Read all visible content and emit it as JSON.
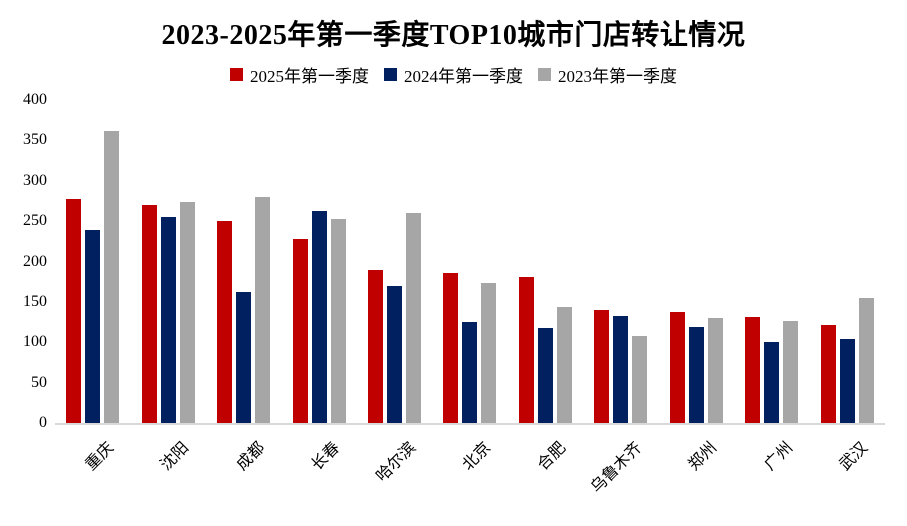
{
  "chart_data": {
    "type": "bar",
    "title": "2023-2025年第一季度TOP10城市门店转让情况",
    "categories": [
      "重庆",
      "沈阳",
      "成都",
      "长春",
      "哈尔滨",
      "北京",
      "合肥",
      "乌鲁木齐",
      "郑州",
      "广州",
      "武汉"
    ],
    "series": [
      {
        "name": "2025年第一季度",
        "color": "#c00000",
        "values": [
          278,
          270,
          250,
          228,
          190,
          186,
          181,
          140,
          137,
          131,
          121
        ]
      },
      {
        "name": "2024年第一季度",
        "color": "#002060",
        "values": [
          239,
          255,
          162,
          262,
          170,
          125,
          118,
          133,
          119,
          100,
          104
        ]
      },
      {
        "name": "2023年第一季度",
        "color": "#a6a6a6",
        "values": [
          362,
          274,
          280,
          253,
          260,
          173,
          144,
          108,
          130,
          126,
          155
        ]
      }
    ],
    "xlabel": "",
    "ylabel": "",
    "ylim": [
      0,
      400
    ],
    "yticks": [
      0,
      50,
      100,
      150,
      200,
      250,
      300,
      350,
      400
    ],
    "grid": false,
    "legend_position": "top",
    "axis_line_color": "#d9d9d9",
    "background_color": "#ffffff"
  }
}
